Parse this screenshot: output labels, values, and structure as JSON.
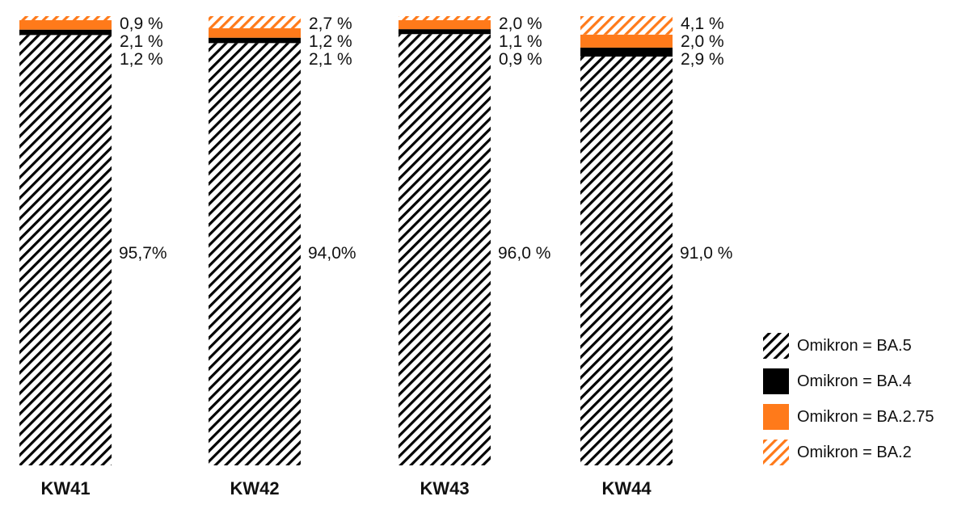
{
  "chart_data": {
    "type": "bar",
    "stacked": true,
    "normalized_percent": true,
    "categories": [
      "KW41",
      "KW42",
      "KW43",
      "KW44"
    ],
    "series": [
      {
        "name": "Omikron = BA.5",
        "values": [
          95.7,
          94.0,
          96.0,
          91.0
        ],
        "labels": [
          "95,7%",
          "94,0%",
          "96,0 %",
          "91,0 %"
        ],
        "fill": "black-hatch"
      },
      {
        "name": "Omikron = BA.4",
        "values": [
          1.2,
          1.2,
          1.1,
          2.0
        ],
        "labels": [
          "1,2 %",
          "1,2 %",
          "1,1 %",
          "2,0 %"
        ],
        "fill": "solid-black"
      },
      {
        "name": "Omikron = BA.2.75",
        "values": [
          2.1,
          2.1,
          2.0,
          2.9
        ],
        "labels": [
          "2,1 %",
          "2,1 %",
          "2,0 %",
          "2,9 %"
        ],
        "fill": "solid-orange"
      },
      {
        "name": "Omikron = BA.2",
        "values": [
          0.9,
          2.7,
          0.9,
          4.1
        ],
        "labels": [
          "0,9 %",
          "2,7 %",
          "0,9 %",
          "4,1 %"
        ],
        "fill": "orange-hatch"
      }
    ],
    "top_labels": [
      [
        "0,9 %",
        "2,1 %",
        "1,2 %"
      ],
      [
        "2,7 %",
        "1,2 %",
        "2,1 %"
      ],
      [
        "2,0 %",
        "1,1 %",
        "0,9 %"
      ],
      [
        "4,1 %",
        "2,0 %",
        "2,9 %"
      ]
    ],
    "main_labels": [
      "95,7%",
      "94,0%",
      "96,0 %",
      "91,0 %"
    ],
    "ylim": [
      0,
      100
    ],
    "grid": false,
    "legend_placement": "bottom-right",
    "colors": {
      "black": "#000000",
      "orange": "#ff7a1a"
    },
    "title": "",
    "xlabel": "",
    "ylabel": ""
  }
}
